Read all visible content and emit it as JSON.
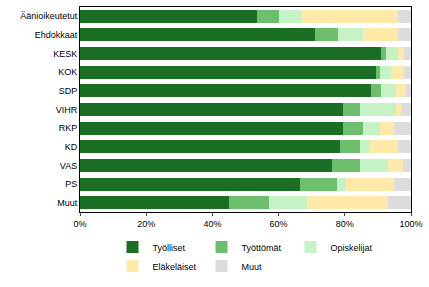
{
  "chart_data": {
    "type": "bar",
    "orientation": "horizontal",
    "stacked": true,
    "categories": [
      "Äänioikeutetut",
      "Ehdokkaat",
      "KESK",
      "KOK",
      "SDP",
      "VIHR",
      "RKP",
      "KD",
      "VAS",
      "PS",
      "Muut"
    ],
    "series": [
      {
        "name": "Työlliset",
        "color": "#1b6e23",
        "values": [
          53.5,
          71,
          91,
          89.5,
          88,
          79.5,
          79.5,
          78.5,
          76,
          66.5,
          45
        ]
      },
      {
        "name": "Työttömät",
        "color": "#6dbf6d",
        "values": [
          6.5,
          7,
          1.5,
          1,
          3,
          5,
          6,
          6,
          8.5,
          11,
          12
        ]
      },
      {
        "name": "Opiskelijat",
        "color": "#c6f3c6",
        "values": [
          7,
          7.5,
          3.5,
          3.5,
          4.5,
          11,
          5,
          3,
          8.5,
          3,
          11.5
        ]
      },
      {
        "name": "Eläkeläiset",
        "color": "#ffe9a8",
        "values": [
          29,
          10.5,
          2,
          4,
          3,
          1.5,
          4.5,
          8.5,
          4.5,
          14.5,
          24.5
        ]
      },
      {
        "name": "Muut",
        "color": "#dcdcdc",
        "values": [
          4,
          4,
          2,
          2,
          1.5,
          3,
          5,
          4,
          2.5,
          5,
          7
        ]
      }
    ],
    "xlim": [
      0,
      100
    ],
    "xticks": [
      {
        "value": 0,
        "label": "0%"
      },
      {
        "value": 20,
        "label": "20%"
      },
      {
        "value": 40,
        "label": "40%"
      },
      {
        "value": 60,
        "label": "60%"
      },
      {
        "value": 80,
        "label": "80%"
      },
      {
        "value": 100,
        "label": "100%"
      }
    ],
    "grid": false,
    "legend": "bottom"
  }
}
